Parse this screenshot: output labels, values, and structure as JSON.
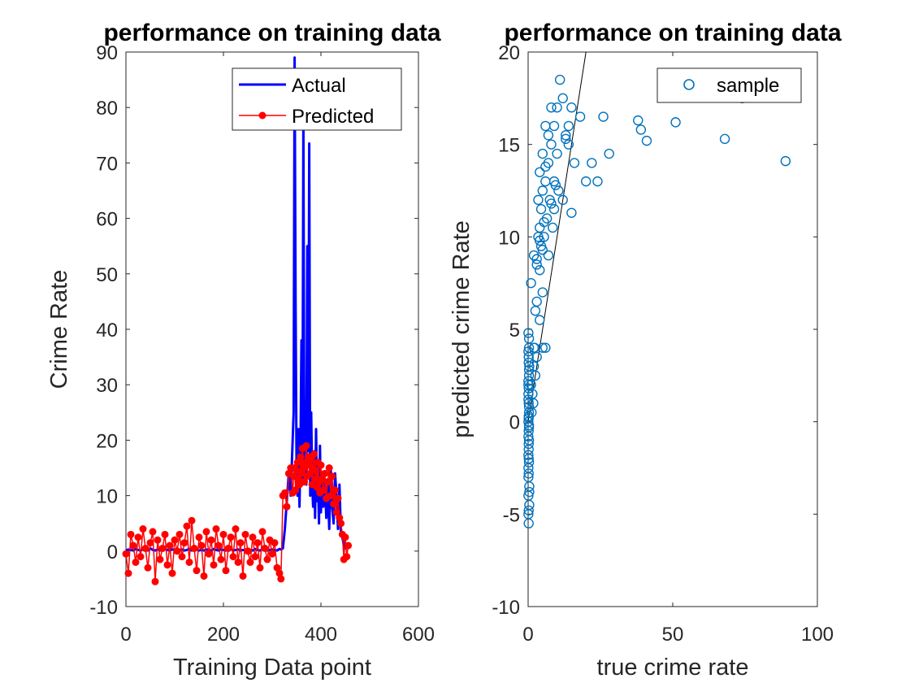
{
  "chart_data": [
    {
      "type": "line",
      "title": "performance on training data",
      "xlabel": "Training Data point",
      "ylabel": "Crime Rate",
      "xlim": [
        0,
        600
      ],
      "ylim": [
        -10,
        90
      ],
      "xticks": [
        0,
        200,
        400,
        600
      ],
      "yticks": [
        -10,
        0,
        10,
        20,
        30,
        40,
        50,
        60,
        70,
        80,
        90
      ],
      "grid": false,
      "legend_position": "top-right",
      "series": [
        {
          "name": "Actual",
          "color": "#0000ff",
          "style": "line",
          "x": [
            0,
            5,
            10,
            15,
            20,
            25,
            30,
            35,
            40,
            45,
            50,
            55,
            60,
            65,
            70,
            75,
            80,
            85,
            90,
            95,
            100,
            105,
            110,
            115,
            120,
            125,
            130,
            135,
            140,
            145,
            150,
            155,
            160,
            165,
            170,
            175,
            180,
            185,
            190,
            195,
            200,
            205,
            210,
            215,
            220,
            225,
            230,
            235,
            240,
            245,
            250,
            255,
            260,
            265,
            270,
            275,
            280,
            285,
            290,
            295,
            300,
            305,
            310,
            315,
            318,
            322,
            326,
            330,
            334,
            338,
            342,
            344,
            346,
            348,
            350,
            352,
            354,
            356,
            358,
            360,
            362,
            364,
            366,
            368,
            370,
            372,
            374,
            376,
            378,
            380,
            382,
            384,
            386,
            388,
            390,
            392,
            394,
            396,
            398,
            400,
            402,
            405,
            408,
            411,
            414,
            417,
            420,
            423,
            426,
            429,
            432,
            435,
            438,
            441,
            444,
            447,
            450,
            453,
            456
          ],
          "y": [
            0.1,
            0.3,
            0.2,
            0.1,
            0.4,
            0.2,
            0.1,
            0.3,
            0.2,
            0.1,
            0.5,
            0.2,
            0.1,
            0.3,
            0.1,
            0.2,
            0.4,
            0.2,
            0.1,
            0.3,
            0.2,
            0.1,
            0.2,
            0.3,
            0.1,
            0.2,
            0.4,
            0.1,
            0.2,
            0.3,
            0.1,
            0.2,
            0.1,
            0.3,
            0.2,
            0.1,
            0.4,
            0.2,
            0.1,
            0.3,
            0.2,
            0.1,
            0.2,
            0.4,
            0.1,
            0.2,
            0.3,
            0.1,
            0.2,
            0.1,
            0.3,
            0.2,
            0.1,
            0.4,
            0.2,
            0.1,
            0.3,
            0.2,
            0.1,
            0.2,
            0.3,
            0.2,
            0.1,
            0.4,
            0.3,
            0.5,
            4.0,
            9.0,
            14.0,
            10.0,
            20.0,
            25.0,
            89.0,
            45.0,
            15.0,
            10.0,
            22.0,
            8.0,
            18.0,
            38.0,
            12.0,
            78.0,
            14.0,
            27.0,
            12.0,
            55.0,
            18.0,
            73.5,
            10.0,
            25.0,
            12.0,
            8.0,
            18.0,
            6.0,
            22.0,
            9.0,
            13.0,
            5.0,
            19.0,
            7.0,
            14.0,
            8.0,
            13.0,
            6.0,
            12.0,
            4.0,
            15.0,
            8.0,
            5.0,
            14.0,
            10.0,
            4.0,
            12.0,
            3.0,
            2.5,
            1.0,
            0.5,
            1.0,
            0.5
          ]
        },
        {
          "name": "Predicted",
          "color": "#ff0000",
          "style": "line-marker",
          "x": [
            0,
            5,
            10,
            15,
            20,
            25,
            30,
            35,
            40,
            45,
            50,
            55,
            60,
            65,
            70,
            75,
            80,
            85,
            90,
            95,
            100,
            105,
            110,
            115,
            120,
            125,
            130,
            135,
            140,
            145,
            150,
            155,
            160,
            165,
            170,
            175,
            180,
            185,
            190,
            195,
            200,
            205,
            210,
            215,
            220,
            225,
            230,
            235,
            240,
            245,
            250,
            255,
            260,
            265,
            270,
            275,
            280,
            285,
            290,
            295,
            300,
            305,
            310,
            315,
            318,
            322,
            326,
            330,
            334,
            338,
            342,
            344,
            346,
            348,
            350,
            352,
            354,
            356,
            358,
            360,
            362,
            364,
            366,
            368,
            370,
            372,
            374,
            376,
            378,
            380,
            382,
            384,
            386,
            388,
            390,
            392,
            394,
            396,
            398,
            400,
            402,
            405,
            408,
            411,
            414,
            417,
            420,
            423,
            426,
            429,
            432,
            435,
            438,
            441,
            444,
            447,
            450,
            453,
            456
          ],
          "y": [
            -0.5,
            -4.0,
            3.0,
            1.0,
            -2.0,
            2.5,
            -1.0,
            4.0,
            0.5,
            -3.0,
            1.5,
            3.5,
            -5.5,
            2.0,
            -1.5,
            0.5,
            3.0,
            -2.5,
            1.0,
            -4.0,
            2.0,
            0.0,
            3.0,
            -1.0,
            1.5,
            4.5,
            -2.0,
            5.5,
            0.5,
            -3.5,
            2.5,
            1.0,
            -4.5,
            3.5,
            -0.5,
            2.0,
            -2.5,
            4.0,
            1.0,
            -1.5,
            3.0,
            -3.5,
            0.5,
            2.5,
            -1.0,
            4.0,
            -2.0,
            1.5,
            -4.5,
            3.0,
            0.0,
            -2.0,
            2.5,
            -1.0,
            1.5,
            -3.0,
            3.5,
            0.5,
            -1.5,
            2.0,
            -0.5,
            1.5,
            -3.0,
            -4.0,
            -5.0,
            10.0,
            10.5,
            8.0,
            14.0,
            15.0,
            10.5,
            13.5,
            15.0,
            11.0,
            14.5,
            16.0,
            13.0,
            12.0,
            17.0,
            14.0,
            18.5,
            15.0,
            12.5,
            16.0,
            19.0,
            13.5,
            17.0,
            15.5,
            14.0,
            16.5,
            12.0,
            15.0,
            17.5,
            13.0,
            14.5,
            11.5,
            16.0,
            12.5,
            10.5,
            15.5,
            13.0,
            11.0,
            14.0,
            9.5,
            12.5,
            15.0,
            10.0,
            13.5,
            8.5,
            11.0,
            7.0,
            9.5,
            6.0,
            5.0,
            3.0,
            -1.5,
            2.5,
            -1.0,
            1.0
          ]
        }
      ]
    },
    {
      "type": "scatter",
      "title": "performance on training data",
      "xlabel": "true crime rate",
      "ylabel": "predicted crime Rate",
      "xlim": [
        0,
        100
      ],
      "ylim": [
        -10,
        20
      ],
      "xticks": [
        0,
        50,
        100
      ],
      "yticks": [
        -10,
        -5,
        0,
        5,
        10,
        15,
        20
      ],
      "grid": false,
      "legend_position": "top-right",
      "reference_line": {
        "x": [
          0,
          20
        ],
        "y": [
          0,
          20
        ],
        "color": "#000000"
      },
      "series": [
        {
          "name": "sample",
          "color": "#0072bd",
          "marker": "circle-open",
          "x": [
            0.1,
            0.2,
            0.3,
            0.1,
            0.2,
            0.4,
            0.1,
            0.3,
            0.2,
            0.1,
            0.2,
            0.3,
            0.1,
            0.2,
            0.4,
            0.3,
            0.1,
            0.2,
            0.3,
            0.1,
            0.2,
            0.1,
            0.3,
            0.2,
            0.4,
            0.1,
            0.2,
            0.3,
            0.1,
            0.2,
            0.3,
            0.1,
            0.2,
            0.1,
            0.3,
            0.2,
            0.1,
            0.4,
            0.2,
            0.3,
            1.0,
            1.5,
            2.0,
            2.5,
            3.0,
            1.2,
            1.8,
            2.2,
            4.0,
            5.0,
            6.0,
            1.0,
            2.0,
            4.5,
            5.5,
            6.5,
            7.5,
            3.0,
            3.5,
            4.0,
            4.5,
            5.0,
            6.0,
            7.0,
            8.0,
            9.0,
            10.0,
            11.0,
            12.0,
            13.0,
            14.0,
            15.0,
            3.5,
            4.0,
            5.0,
            6.0,
            7.0,
            8.0,
            9.0,
            10.0,
            12.0,
            14.0,
            16.0,
            18.0,
            20.0,
            22.0,
            24.0,
            26.0,
            28.0,
            38.0,
            39.0,
            41.0,
            51.0,
            68.0,
            74.0,
            89.0,
            9.0,
            15.0,
            2.5,
            5.0,
            7.0,
            8.5,
            10.5,
            6.0,
            8.0,
            3.0,
            4.0,
            5.5,
            9.5,
            13.0,
            2.0,
            3.0,
            4.0,
            5.0
          ],
          "y": [
            0.0,
            1.0,
            -1.0,
            2.0,
            -2.0,
            3.0,
            -3.0,
            0.5,
            -0.5,
            1.5,
            -1.5,
            2.5,
            -2.5,
            3.5,
            -3.5,
            4.0,
            -4.0,
            0.2,
            -0.2,
            1.2,
            -1.2,
            2.2,
            -2.2,
            3.2,
            -4.5,
            -5.0,
            -5.5,
            4.5,
            4.8,
            -4.8,
            0.8,
            -0.8,
            1.8,
            -1.8,
            2.8,
            -2.8,
            3.8,
            -3.8,
            0.3,
            -0.3,
            2.0,
            1.5,
            3.0,
            2.5,
            3.5,
            0.5,
            1.0,
            4.0,
            5.5,
            4.0,
            4.0,
            7.5,
            9.0,
            9.5,
            10.0,
            11.0,
            12.0,
            8.5,
            10.0,
            10.5,
            11.5,
            12.5,
            13.0,
            14.0,
            15.0,
            16.0,
            17.0,
            18.5,
            17.5,
            15.5,
            16.0,
            17.0,
            12.0,
            13.5,
            14.5,
            16.0,
            15.5,
            17.0,
            13.0,
            14.5,
            12.0,
            15.0,
            14.0,
            16.5,
            13.0,
            14.0,
            13.0,
            16.5,
            14.5,
            16.3,
            15.8,
            15.2,
            16.2,
            15.3,
            17.5,
            14.1,
            11.5,
            11.3,
            6.0,
            7.0,
            9.0,
            10.5,
            12.5,
            13.8,
            11.8,
            8.8,
            9.8,
            10.8,
            12.8,
            15.3,
            4.0,
            6.5,
            8.2,
            9.3
          ]
        }
      ]
    }
  ]
}
